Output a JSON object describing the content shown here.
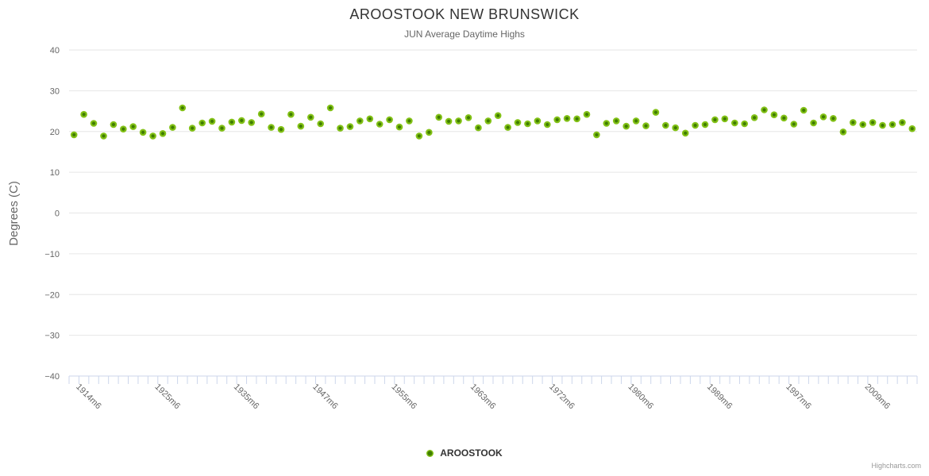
{
  "header": {
    "title": "AROOSTOOK NEW BRUNSWICK",
    "subtitle": "JUN Average Daytime Highs"
  },
  "legend": {
    "series_label": "AROOSTOOK"
  },
  "credits": {
    "text": "Highcharts.com"
  },
  "colors": {
    "marker_core": "#3f7d00",
    "marker_rim": "#82c116",
    "gridline": "#e6e6e6",
    "axis_line": "#ccd6eb",
    "tick": "#ccd6eb",
    "axis_label": "#666666",
    "title": "#333333",
    "subtitle": "#666666"
  },
  "chart_data": {
    "type": "scatter",
    "title": "AROOSTOOK NEW BRUNSWICK",
    "subtitle": "JUN Average Daytime Highs",
    "xlabel": "",
    "ylabel": "Degrees (C)",
    "ylim": [
      -40,
      40
    ],
    "y_ticks": [
      40,
      30,
      20,
      10,
      0,
      -10,
      -20,
      -30,
      -40
    ],
    "grid": true,
    "legend_position": "bottom",
    "n_points": 86,
    "x_tick_labels": [
      {
        "i": 0,
        "label": "1914m6"
      },
      {
        "i": 8,
        "label": "1925m6"
      },
      {
        "i": 16,
        "label": "1935m6"
      },
      {
        "i": 24,
        "label": "1947m6"
      },
      {
        "i": 32,
        "label": "1955m6"
      },
      {
        "i": 40,
        "label": "1963m6"
      },
      {
        "i": 48,
        "label": "1972m6"
      },
      {
        "i": 56,
        "label": "1980m6"
      },
      {
        "i": 64,
        "label": "1989m6"
      },
      {
        "i": 72,
        "label": "1997m6"
      },
      {
        "i": 80,
        "label": "2009m6"
      }
    ],
    "series": [
      {
        "name": "AROOSTOOK",
        "values": [
          19.2,
          24.2,
          22.0,
          18.9,
          21.7,
          20.6,
          21.2,
          19.8,
          18.9,
          19.5,
          21.0,
          25.8,
          20.8,
          22.1,
          22.5,
          20.8,
          22.3,
          22.7,
          22.2,
          24.3,
          21.0,
          20.5,
          24.2,
          21.3,
          23.5,
          21.9,
          25.8,
          20.8,
          21.2,
          22.6,
          23.1,
          21.8,
          22.9,
          21.1,
          22.6,
          18.9,
          19.8,
          23.5,
          22.5,
          22.6,
          23.4,
          20.9,
          22.6,
          23.9,
          21.0,
          22.2,
          21.9,
          22.6,
          21.7,
          22.9,
          23.2,
          23.1,
          24.2,
          19.2,
          22.0,
          22.6,
          21.3,
          22.6,
          21.4,
          24.7,
          21.5,
          20.9,
          19.6,
          21.5,
          21.7,
          22.9,
          23.1,
          22.1,
          21.9,
          23.4,
          25.3,
          24.1,
          23.3,
          21.8,
          25.2,
          22.1,
          23.6,
          23.2,
          19.9,
          22.2,
          21.7,
          22.2,
          21.5,
          21.7,
          22.2,
          20.7
        ]
      }
    ]
  }
}
